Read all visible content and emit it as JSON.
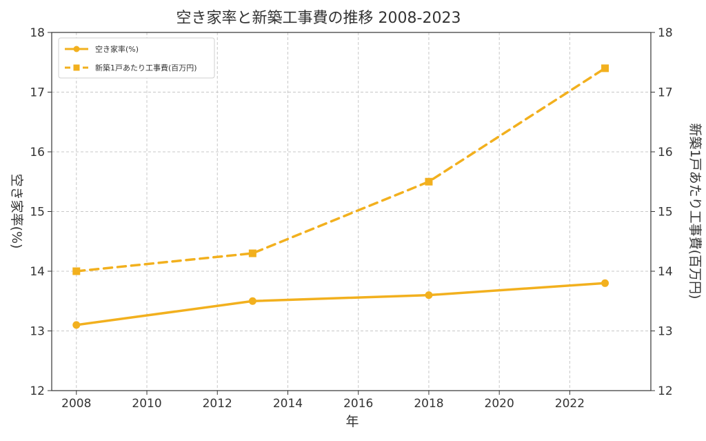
{
  "chart_data": {
    "type": "line",
    "title": "空き家率と新築工事費の推移 2008-2023",
    "xlabel": "年",
    "ylabel_left": "空き家率(%)",
    "ylabel_right": "新築1戸あたり工事費(百万円)",
    "xlim": [
      2007.3,
      2024.3
    ],
    "ylim_left": [
      12,
      18
    ],
    "ylim_right": [
      12,
      18
    ],
    "x_ticks": [
      2008,
      2010,
      2012,
      2014,
      2016,
      2018,
      2020,
      2022
    ],
    "y_ticks_left": [
      12,
      13,
      14,
      15,
      16,
      17,
      18
    ],
    "y_ticks_right": [
      12,
      13,
      14,
      15,
      16,
      17,
      18
    ],
    "grid": true,
    "legend_position": "top-left",
    "series": [
      {
        "name": "空き家率(%)",
        "axis": "left",
        "x": [
          2008,
          2013,
          2018,
          2023
        ],
        "values": [
          13.1,
          13.5,
          13.6,
          13.8
        ],
        "color": "#F2B01E",
        "line_style": "solid",
        "marker": "circle"
      },
      {
        "name": "新築1戸あたり工事費(百万円)",
        "axis": "right",
        "x": [
          2008,
          2013,
          2018,
          2023
        ],
        "values": [
          14.0,
          14.3,
          15.5,
          17.4
        ],
        "color": "#F2B01E",
        "line_style": "dashed",
        "marker": "square"
      }
    ]
  }
}
